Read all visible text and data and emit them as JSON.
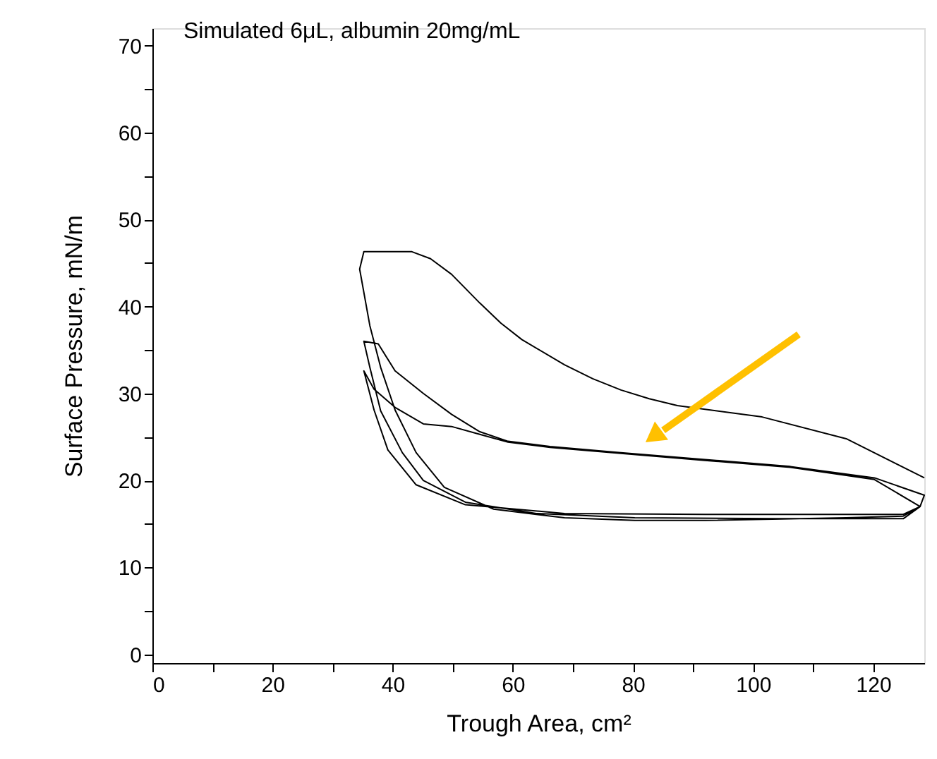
{
  "chart_data": {
    "type": "line",
    "title": "Simulated 6μL, albumin 20mg/mL",
    "xlabel": "Trough Area, cm²",
    "ylabel": "Surface Pressure, mN/m",
    "xlim": [
      0,
      128.5
    ],
    "ylim": [
      -1,
      72
    ],
    "xticks": [
      0,
      {
        "value": 10,
        "label": null
      },
      20,
      {
        "value": 30,
        "label": null
      },
      40,
      {
        "value": 50,
        "label": null
      },
      60,
      {
        "value": 70,
        "label": null
      },
      80,
      {
        "value": 90,
        "label": null
      },
      100,
      {
        "value": 110,
        "label": null
      },
      120
    ],
    "yticks": [
      0,
      {
        "value": 5,
        "label": null
      },
      10,
      {
        "value": 15,
        "label": null
      },
      20,
      {
        "value": 25,
        "label": null
      },
      30,
      {
        "value": 35,
        "label": null
      },
      40,
      {
        "value": 45,
        "label": null
      },
      50,
      {
        "value": 55,
        "label": null
      },
      60,
      {
        "value": 65,
        "label": null
      },
      70
    ],
    "grid": false,
    "legend": false,
    "marker": "none",
    "line_style": "solid",
    "series": [
      {
        "color": "#000000",
        "x": [
          128.5,
          115.5,
          101.5,
          87.4,
          82.7,
          78,
          73.3,
          68.6,
          61.5,
          58,
          54.5,
          49.8,
          46.3,
          43.2,
          40.4,
          35.2,
          34.5,
          36.2,
          38,
          40.4,
          43.9,
          48.6,
          56.8,
          68.6,
          80.3,
          92,
          115.5,
          125,
          127.8,
          128.5,
          120.2,
          106.2,
          92,
          78,
          66.2,
          59.2,
          54.5,
          49.8,
          45.1,
          40.4,
          37.6,
          35.2,
          36.2,
          38,
          41.6,
          45.1,
          52.1,
          63.9,
          80.3,
          103.8,
          125,
          127.8,
          120.2,
          106.2,
          92,
          78,
          66.2,
          59.2,
          54.5,
          49.8,
          45.1,
          40.4,
          36.9,
          35.2,
          36.9,
          39.2,
          43.9,
          52.1,
          68.6,
          92,
          125,
          127.8
        ],
        "values": [
          20.3,
          24.8,
          27.3,
          28.6,
          29.4,
          30.4,
          31.7,
          33.3,
          36.2,
          38.1,
          40.4,
          43.7,
          45.5,
          46.3,
          46.3,
          46.3,
          44.3,
          37.8,
          33,
          28.1,
          23.2,
          19.2,
          16.7,
          15.7,
          15.4,
          15.4,
          15.7,
          15.9,
          17,
          18.3,
          20.3,
          21.6,
          22.4,
          23.2,
          23.9,
          24.5,
          25.6,
          27.6,
          30,
          32.6,
          35.7,
          36,
          33,
          28,
          23.2,
          20,
          17.5,
          16.2,
          15.7,
          15.6,
          15.6,
          17,
          20.1,
          21.5,
          22.3,
          23.1,
          23.8,
          24.4,
          25.3,
          26.2,
          26.5,
          28.4,
          30.5,
          32.6,
          28.1,
          23.5,
          19.5,
          17.2,
          16.2,
          16.1,
          16.1,
          17
        ]
      }
    ]
  }
}
